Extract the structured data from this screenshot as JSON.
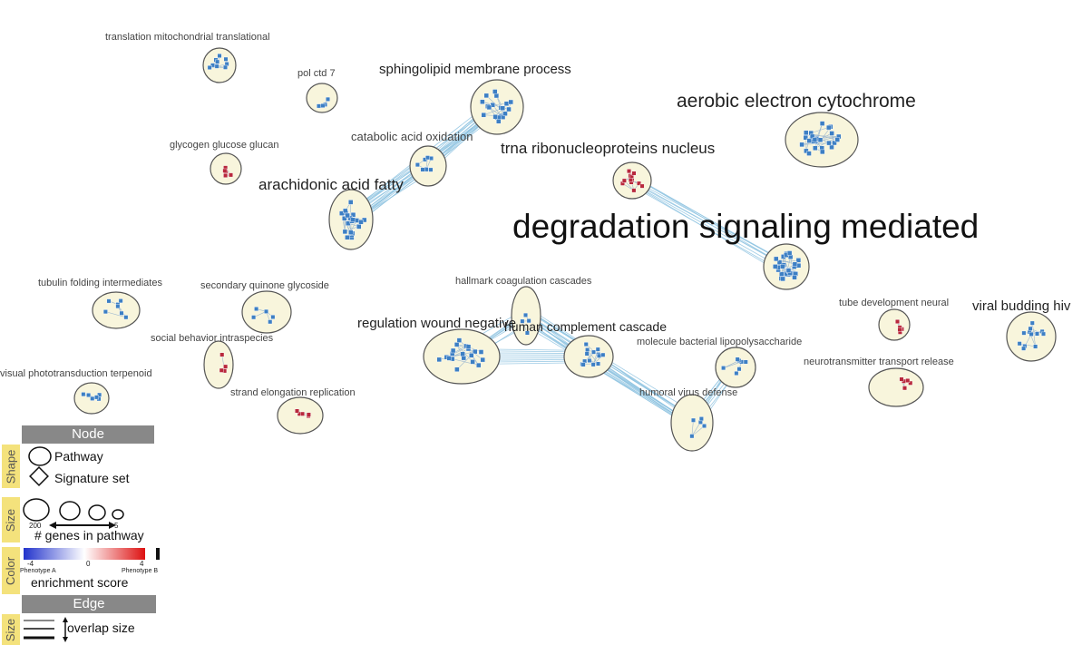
{
  "network": {
    "clusters": [
      {
        "id": "translation",
        "label": "translation mitochondrial translational",
        "color": "#3d7fc4"
      },
      {
        "id": "polctd",
        "label": "pol ctd 7",
        "color": "#3d7fc4"
      },
      {
        "id": "sphingo",
        "label": "sphingolipid membrane process",
        "color": "#3d7fc4"
      },
      {
        "id": "aerobic",
        "label": "aerobic electron cytochrome",
        "color": "#3d7fc4"
      },
      {
        "id": "glycogen",
        "label": "glycogen glucose glucan",
        "color": "#b8283c"
      },
      {
        "id": "catabolic",
        "label": "catabolic acid oxidation",
        "color": "#3d7fc4"
      },
      {
        "id": "trna",
        "label": "trna ribonucleoproteins nucleus",
        "color": "#b8283c"
      },
      {
        "id": "arachidonic",
        "label": "arachidonic acid fatty",
        "color": "#3d7fc4"
      },
      {
        "id": "degradation",
        "label": "degradation signaling mediated",
        "color": "#3d7fc4"
      },
      {
        "id": "tubulin",
        "label": "tubulin folding intermediates",
        "color": "#3d7fc4"
      },
      {
        "id": "secondary",
        "label": "secondary quinone glycoside",
        "color": "#3d7fc4"
      },
      {
        "id": "hallmark",
        "label": "hallmark coagulation cascades",
        "color": "#3d7fc4"
      },
      {
        "id": "tube",
        "label": "tube development neural",
        "color": "#b8283c"
      },
      {
        "id": "viral",
        "label": "viral budding hiv",
        "color": "#3d7fc4"
      },
      {
        "id": "regulation",
        "label": "regulation wound negative",
        "color": "#3d7fc4"
      },
      {
        "id": "complement",
        "label": "human complement cascade",
        "color": "#3d7fc4"
      },
      {
        "id": "social",
        "label": "social behavior intraspecies",
        "color": "#b8283c"
      },
      {
        "id": "molecule",
        "label": "molecule bacterial lipopolysaccharide",
        "color": "#3d7fc4"
      },
      {
        "id": "neuro",
        "label": "neurotransmitter transport release",
        "color": "#b8283c"
      },
      {
        "id": "visual",
        "label": "visual phototransduction terpenoid",
        "color": "#3d7fc4"
      },
      {
        "id": "strand",
        "label": "strand elongation replication",
        "color": "#b8283c"
      },
      {
        "id": "humoral",
        "label": "humoral virus defense",
        "color": "#3d7fc4"
      }
    ],
    "edges": [
      [
        "catabolic",
        "sphingo"
      ],
      [
        "arachidonic",
        "catabolic"
      ],
      [
        "arachidonic",
        "sphingo"
      ],
      [
        "trna",
        "degradation"
      ],
      [
        "regulation",
        "hallmark"
      ],
      [
        "regulation",
        "complement"
      ],
      [
        "hallmark",
        "complement"
      ],
      [
        "complement",
        "humoral"
      ],
      [
        "molecule",
        "humoral"
      ],
      [
        "hallmark",
        "humoral"
      ]
    ],
    "colors": {
      "cluster_fill": "#f8f5dc",
      "cluster_stroke": "#555555",
      "edge": "#8ec3e0",
      "blue": "#3d7fc4",
      "red": "#b8283c"
    }
  },
  "legend": {
    "node_header": "Node",
    "shape_tab": "Shape",
    "pathway_label": "Pathway",
    "signature_label": "Signature set",
    "size_tab": "Size",
    "size_max": "200",
    "size_min": "5",
    "genes_label": "# genes in pathway",
    "color_tab": "Color",
    "scale_min": "-4",
    "scale_mid": "0",
    "scale_max": "4",
    "phenotype_a": "Phenotype A",
    "phenotype_b": "Phenotype B",
    "enrichment_label": "enrichment score",
    "edge_header": "Edge",
    "edge_size_tab": "Size",
    "overlap_label": "overlap size"
  }
}
